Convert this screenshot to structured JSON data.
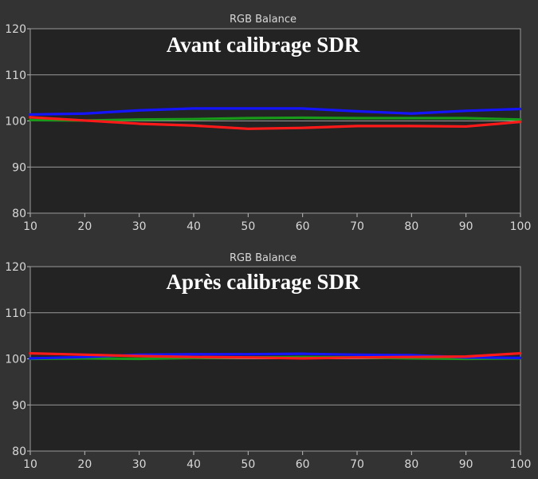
{
  "chart_data": [
    {
      "type": "line",
      "title": "RGB Balance",
      "annotation": "Avant calibrage SDR",
      "x": [
        10,
        20,
        30,
        40,
        50,
        60,
        70,
        80,
        90,
        100
      ],
      "xlim": [
        10,
        100
      ],
      "ylim": [
        80,
        120
      ],
      "xticks": [
        "10",
        "20",
        "30",
        "40",
        "50",
        "60",
        "70",
        "80",
        "90",
        "100"
      ],
      "yticks": [
        "80",
        "90",
        "100",
        "110",
        "120"
      ],
      "grid": true,
      "series": [
        {
          "color": "#1a9a1a",
          "values": [
            100.2,
            100.1,
            100.3,
            100.4,
            100.6,
            100.7,
            100.6,
            100.6,
            100.6,
            100.3
          ]
        },
        {
          "color": "#ff1a1a",
          "values": [
            100.8,
            100.1,
            99.4,
            99.0,
            98.3,
            98.5,
            98.9,
            98.9,
            98.8,
            99.8
          ]
        },
        {
          "color": "#1414ff",
          "values": [
            101.4,
            101.6,
            102.3,
            102.7,
            102.7,
            102.7,
            102.1,
            101.6,
            102.2,
            102.6
          ]
        }
      ]
    },
    {
      "type": "line",
      "title": "RGB Balance",
      "annotation": "Après calibrage SDR",
      "x": [
        10,
        20,
        30,
        40,
        50,
        60,
        70,
        80,
        90,
        100
      ],
      "xlim": [
        10,
        100
      ],
      "ylim": [
        80,
        120
      ],
      "xticks": [
        "10",
        "20",
        "30",
        "40",
        "50",
        "60",
        "70",
        "80",
        "90",
        "100"
      ],
      "yticks": [
        "80",
        "90",
        "100",
        "110",
        "120"
      ],
      "grid": true,
      "series": [
        {
          "color": "#1a9a1a",
          "values": [
            100.0,
            100.1,
            100.0,
            100.2,
            100.3,
            100.4,
            100.3,
            100.1,
            100.0,
            100.1
          ]
        },
        {
          "color": "#1414ff",
          "values": [
            100.1,
            100.4,
            100.9,
            101.0,
            101.0,
            101.1,
            100.9,
            100.8,
            100.3,
            100.2
          ]
        },
        {
          "color": "#ff1a1a",
          "values": [
            101.2,
            100.9,
            100.6,
            100.4,
            100.3,
            100.1,
            100.3,
            100.4,
            100.5,
            101.2
          ]
        }
      ]
    }
  ]
}
